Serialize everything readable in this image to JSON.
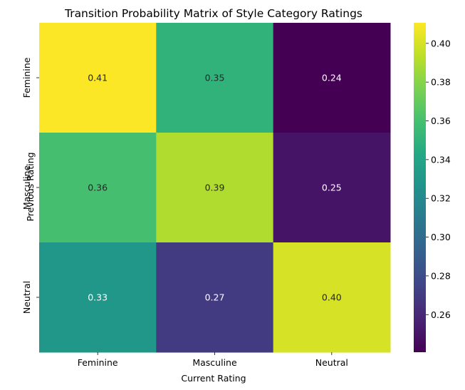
{
  "chart_data": {
    "type": "heatmap",
    "title": "Transition Probability Matrix of Style Category Ratings",
    "xlabel": "Current Rating",
    "ylabel": "Previous Rating",
    "x_categories": [
      "Feminine",
      "Masculine",
      "Neutral"
    ],
    "y_categories": [
      "Feminine",
      "Masculine",
      "Neutral"
    ],
    "values": [
      [
        0.41,
        0.35,
        0.24
      ],
      [
        0.36,
        0.39,
        0.25
      ],
      [
        0.33,
        0.27,
        0.4
      ]
    ],
    "value_format": "0.00",
    "colormap": "viridis",
    "colorbar": {
      "range": [
        0.2406,
        0.4106
      ],
      "ticks": [
        "0.26",
        "0.28",
        "0.30",
        "0.32",
        "0.34",
        "0.36",
        "0.38",
        "0.40"
      ]
    },
    "colors": {
      "annotation_on_dark": "#ffffff",
      "annotation_on_light": "#262626"
    }
  }
}
